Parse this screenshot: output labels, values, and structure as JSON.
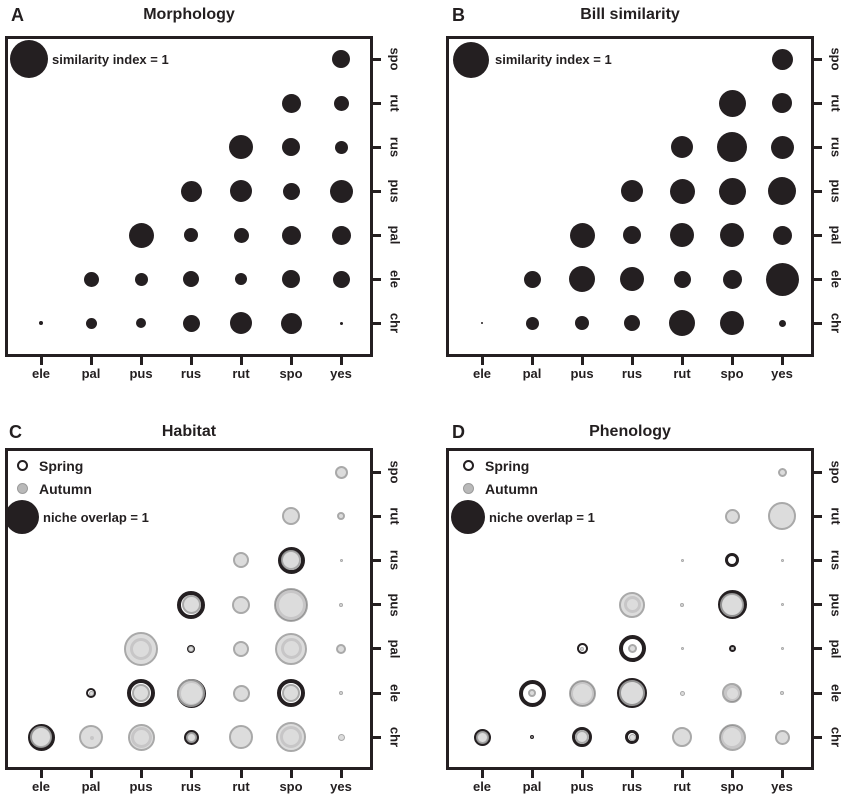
{
  "figure": {
    "background": "#ffffff",
    "ink_color": "#231f20",
    "autumn_fill_color": "#d9d9d9",
    "autumn_border_color": "#a0a0a0"
  },
  "chart_data": [
    {
      "panel": "A",
      "title": "Morphology",
      "type": "bubble-matrix",
      "legend_label": "similarity index = 1",
      "legend_max_value": 1,
      "x_labels": [
        "ele",
        "pal",
        "pus",
        "rus",
        "rut",
        "spo",
        "yes"
      ],
      "y_labels": [
        "spo",
        "rut",
        "rus",
        "pus",
        "pal",
        "ele",
        "chr"
      ],
      "cells": [
        {
          "row": "spo",
          "col": "yes",
          "value": 0.47
        },
        {
          "row": "rut",
          "col": "spo",
          "value": 0.5
        },
        {
          "row": "rut",
          "col": "yes",
          "value": 0.39
        },
        {
          "row": "rus",
          "col": "rut",
          "value": 0.63
        },
        {
          "row": "rus",
          "col": "spo",
          "value": 0.47
        },
        {
          "row": "rus",
          "col": "yes",
          "value": 0.34
        },
        {
          "row": "pus",
          "col": "rus",
          "value": 0.55
        },
        {
          "row": "pus",
          "col": "rut",
          "value": 0.58
        },
        {
          "row": "pus",
          "col": "spo",
          "value": 0.45
        },
        {
          "row": "pus",
          "col": "yes",
          "value": 0.61
        },
        {
          "row": "pal",
          "col": "pus",
          "value": 0.66
        },
        {
          "row": "pal",
          "col": "rus",
          "value": 0.37
        },
        {
          "row": "pal",
          "col": "rut",
          "value": 0.39
        },
        {
          "row": "pal",
          "col": "spo",
          "value": 0.5
        },
        {
          "row": "pal",
          "col": "yes",
          "value": 0.5
        },
        {
          "row": "ele",
          "col": "pal",
          "value": 0.39
        },
        {
          "row": "ele",
          "col": "pus",
          "value": 0.34
        },
        {
          "row": "ele",
          "col": "rus",
          "value": 0.42
        },
        {
          "row": "ele",
          "col": "rut",
          "value": 0.32
        },
        {
          "row": "ele",
          "col": "spo",
          "value": 0.47
        },
        {
          "row": "ele",
          "col": "yes",
          "value": 0.45
        },
        {
          "row": "chr",
          "col": "ele",
          "value": 0.1
        },
        {
          "row": "chr",
          "col": "pal",
          "value": 0.3
        },
        {
          "row": "chr",
          "col": "pus",
          "value": 0.25
        },
        {
          "row": "chr",
          "col": "rus",
          "value": 0.45
        },
        {
          "row": "chr",
          "col": "rut",
          "value": 0.58
        },
        {
          "row": "chr",
          "col": "spo",
          "value": 0.55
        },
        {
          "row": "chr",
          "col": "yes",
          "value": 0.08
        }
      ]
    },
    {
      "panel": "B",
      "title": "Bill similarity",
      "type": "bubble-matrix",
      "legend_label": "similarity index = 1",
      "legend_max_value": 1,
      "x_labels": [
        "ele",
        "pal",
        "pus",
        "rus",
        "rut",
        "spo",
        "yes"
      ],
      "y_labels": [
        "spo",
        "rut",
        "rus",
        "pus",
        "pal",
        "ele",
        "chr"
      ],
      "cells": [
        {
          "row": "spo",
          "col": "yes",
          "value": 0.55
        },
        {
          "row": "rut",
          "col": "spo",
          "value": 0.71
        },
        {
          "row": "rut",
          "col": "yes",
          "value": 0.53
        },
        {
          "row": "rus",
          "col": "rut",
          "value": 0.58
        },
        {
          "row": "rus",
          "col": "spo",
          "value": 0.79
        },
        {
          "row": "rus",
          "col": "yes",
          "value": 0.61
        },
        {
          "row": "pus",
          "col": "rus",
          "value": 0.58
        },
        {
          "row": "pus",
          "col": "rut",
          "value": 0.66
        },
        {
          "row": "pus",
          "col": "spo",
          "value": 0.71
        },
        {
          "row": "pus",
          "col": "yes",
          "value": 0.74
        },
        {
          "row": "pal",
          "col": "pus",
          "value": 0.66
        },
        {
          "row": "pal",
          "col": "rus",
          "value": 0.47
        },
        {
          "row": "pal",
          "col": "rut",
          "value": 0.63
        },
        {
          "row": "pal",
          "col": "spo",
          "value": 0.63
        },
        {
          "row": "pal",
          "col": "yes",
          "value": 0.5
        },
        {
          "row": "ele",
          "col": "pal",
          "value": 0.45
        },
        {
          "row": "ele",
          "col": "pus",
          "value": 0.68
        },
        {
          "row": "ele",
          "col": "rus",
          "value": 0.63
        },
        {
          "row": "ele",
          "col": "rut",
          "value": 0.45
        },
        {
          "row": "ele",
          "col": "spo",
          "value": 0.5
        },
        {
          "row": "ele",
          "col": "yes",
          "value": 0.87
        },
        {
          "row": "chr",
          "col": "ele",
          "value": 0.05
        },
        {
          "row": "chr",
          "col": "pal",
          "value": 0.34
        },
        {
          "row": "chr",
          "col": "pus",
          "value": 0.37
        },
        {
          "row": "chr",
          "col": "rus",
          "value": 0.42
        },
        {
          "row": "chr",
          "col": "rut",
          "value": 0.68
        },
        {
          "row": "chr",
          "col": "spo",
          "value": 0.63
        },
        {
          "row": "chr",
          "col": "yes",
          "value": 0.18
        }
      ]
    },
    {
      "panel": "C",
      "title": "Habitat",
      "type": "bubble-matrix-2series",
      "series": [
        {
          "name": "Spring",
          "style": "open-black-ring"
        },
        {
          "name": "Autumn",
          "style": "gray-filled"
        }
      ],
      "legend_label": "niche overlap = 1",
      "legend_max_value": 1,
      "x_labels": [
        "ele",
        "pal",
        "pus",
        "rus",
        "rut",
        "spo",
        "yes"
      ],
      "y_labels": [
        "spo",
        "rut",
        "rus",
        "pus",
        "pal",
        "ele",
        "chr"
      ],
      "cells": [
        {
          "row": "spo",
          "col": "yes",
          "spring": 0,
          "autumn": 0.38
        },
        {
          "row": "rut",
          "col": "spo",
          "spring": 0,
          "autumn": 0.53
        },
        {
          "row": "rut",
          "col": "yes",
          "spring": 0,
          "autumn": 0.24
        },
        {
          "row": "rus",
          "col": "rut",
          "spring": 0,
          "autumn": 0.47
        },
        {
          "row": "rus",
          "col": "spo",
          "spring": 0.79,
          "autumn": 0.59
        },
        {
          "row": "rus",
          "col": "yes",
          "spring": 0,
          "autumn": 0.09
        },
        {
          "row": "pus",
          "col": "rus",
          "spring": 0.82,
          "autumn": 0.56
        },
        {
          "row": "pus",
          "col": "rut",
          "spring": 0,
          "autumn": 0.53
        },
        {
          "row": "pus",
          "col": "spo",
          "spring": 0.94,
          "autumn": 1.0
        },
        {
          "row": "pus",
          "col": "yes",
          "spring": 0,
          "autumn": 0.12
        },
        {
          "row": "pal",
          "col": "pus",
          "spring": 0.65,
          "autumn": 1.0
        },
        {
          "row": "pal",
          "col": "rus",
          "spring": 0.24,
          "autumn": 0.18
        },
        {
          "row": "pal",
          "col": "rut",
          "spring": 0,
          "autumn": 0.47
        },
        {
          "row": "pal",
          "col": "spo",
          "spring": 0.62,
          "autumn": 0.94
        },
        {
          "row": "pal",
          "col": "yes",
          "spring": 0,
          "autumn": 0.29
        },
        {
          "row": "ele",
          "col": "pal",
          "spring": 0.29,
          "autumn": 0.15
        },
        {
          "row": "ele",
          "col": "pus",
          "spring": 0.82,
          "autumn": 0.53
        },
        {
          "row": "ele",
          "col": "rus",
          "spring": 0.85,
          "autumn": 0.82
        },
        {
          "row": "ele",
          "col": "rut",
          "spring": 0,
          "autumn": 0.5
        },
        {
          "row": "ele",
          "col": "spo",
          "spring": 0.82,
          "autumn": 0.53
        },
        {
          "row": "ele",
          "col": "yes",
          "spring": 0,
          "autumn": 0.12
        },
        {
          "row": "chr",
          "col": "ele",
          "spring": 0.79,
          "autumn": 0.65
        },
        {
          "row": "chr",
          "col": "pal",
          "spring": 0.06,
          "autumn": 0.71
        },
        {
          "row": "chr",
          "col": "pus",
          "spring": 0.62,
          "autumn": 0.79
        },
        {
          "row": "chr",
          "col": "rus",
          "spring": 0.44,
          "autumn": 0.33
        },
        {
          "row": "chr",
          "col": "rut",
          "spring": 0,
          "autumn": 0.7
        },
        {
          "row": "chr",
          "col": "spo",
          "spring": 0.65,
          "autumn": 0.88
        },
        {
          "row": "chr",
          "col": "yes",
          "spring": 0,
          "autumn": 0.21
        }
      ]
    },
    {
      "panel": "D",
      "title": "Phenology",
      "type": "bubble-matrix-2series",
      "series": [
        {
          "name": "Spring",
          "style": "open-black-ring"
        },
        {
          "name": "Autumn",
          "style": "gray-filled"
        }
      ],
      "legend_label": "niche overlap = 1",
      "legend_max_value": 1,
      "x_labels": [
        "ele",
        "pal",
        "pus",
        "rus",
        "rut",
        "spo",
        "yes"
      ],
      "y_labels": [
        "spo",
        "rut",
        "rus",
        "pus",
        "pal",
        "ele",
        "chr"
      ],
      "cells": [
        {
          "row": "spo",
          "col": "yes",
          "spring": 0,
          "autumn": 0.26
        },
        {
          "row": "rut",
          "col": "spo",
          "spring": 0,
          "autumn": 0.44
        },
        {
          "row": "rut",
          "col": "yes",
          "spring": 0,
          "autumn": 0.82
        },
        {
          "row": "rus",
          "col": "rut",
          "spring": 0,
          "autumn": 0.09
        },
        {
          "row": "rus",
          "col": "spo",
          "spring": 0.41,
          "autumn": 0
        },
        {
          "row": "rus",
          "col": "yes",
          "spring": 0,
          "autumn": 0.09
        },
        {
          "row": "pus",
          "col": "rus",
          "spring": 0.5,
          "autumn": 0.76
        },
        {
          "row": "pus",
          "col": "rut",
          "spring": 0,
          "autumn": 0.12
        },
        {
          "row": "pus",
          "col": "spo",
          "spring": 0.85,
          "autumn": 0.71
        },
        {
          "row": "pus",
          "col": "yes",
          "spring": 0,
          "autumn": 0.09
        },
        {
          "row": "pal",
          "col": "pus",
          "spring": 0.32,
          "autumn": 0.12
        },
        {
          "row": "pal",
          "col": "rus",
          "spring": 0.79,
          "autumn": 0.26
        },
        {
          "row": "pal",
          "col": "rut",
          "spring": 0,
          "autumn": 0.09
        },
        {
          "row": "pal",
          "col": "spo",
          "spring": 0.21,
          "autumn": 0.09
        },
        {
          "row": "pal",
          "col": "yes",
          "spring": 0,
          "autumn": 0.09
        },
        {
          "row": "ele",
          "col": "pal",
          "spring": 0.79,
          "autumn": 0.24
        },
        {
          "row": "ele",
          "col": "pus",
          "spring": 0.74,
          "autumn": 0.79
        },
        {
          "row": "ele",
          "col": "rus",
          "spring": 0.88,
          "autumn": 0.76
        },
        {
          "row": "ele",
          "col": "rut",
          "spring": 0,
          "autumn": 0.15
        },
        {
          "row": "ele",
          "col": "spo",
          "spring": 0.5,
          "autumn": 0.59
        },
        {
          "row": "ele",
          "col": "yes",
          "spring": 0,
          "autumn": 0.12
        },
        {
          "row": "chr",
          "col": "ele",
          "spring": 0.5,
          "autumn": 0.38
        },
        {
          "row": "chr",
          "col": "pal",
          "spring": 0.12,
          "autumn": 0.06
        },
        {
          "row": "chr",
          "col": "pus",
          "spring": 0.59,
          "autumn": 0.41
        },
        {
          "row": "chr",
          "col": "rus",
          "spring": 0.41,
          "autumn": 0.21
        },
        {
          "row": "chr",
          "col": "rut",
          "spring": 0,
          "autumn": 0.59
        },
        {
          "row": "chr",
          "col": "spo",
          "spring": 0.71,
          "autumn": 0.79
        },
        {
          "row": "chr",
          "col": "yes",
          "spring": 0,
          "autumn": 0.44
        }
      ]
    }
  ]
}
